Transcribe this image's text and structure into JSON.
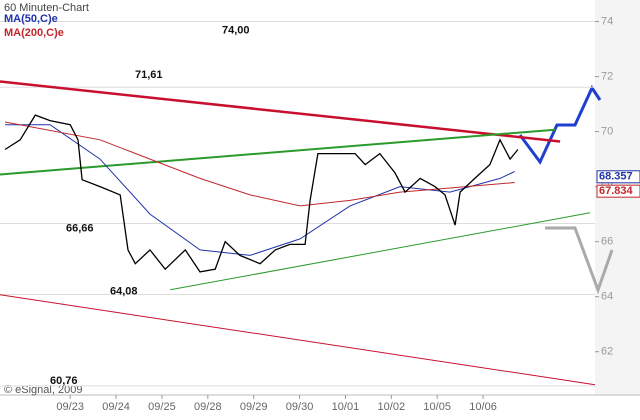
{
  "chart_data": {
    "type": "line",
    "title": "60 Minuten-Chart",
    "credit": "© eSignal, 2009",
    "xlim": [
      -1.53,
      11.44
    ],
    "ylim": [
      60.5,
      74.6
    ],
    "xticks": [
      {
        "value": 0,
        "label": "09/23"
      },
      {
        "value": 1,
        "label": "09/24"
      },
      {
        "value": 2,
        "label": "09/25"
      },
      {
        "value": 3,
        "label": "09/28"
      },
      {
        "value": 4,
        "label": "09/29"
      },
      {
        "value": 5,
        "label": "09/30"
      },
      {
        "value": 6,
        "label": "10/01"
      },
      {
        "value": 7,
        "label": "10/02"
      },
      {
        "value": 8,
        "label": "10/05"
      },
      {
        "value": 9,
        "label": "10/06"
      }
    ],
    "yticks": [
      62,
      64,
      66,
      68,
      70,
      72,
      74
    ],
    "levels": [
      {
        "value": 74,
        "label": "74,00"
      },
      {
        "value": 71.61,
        "label": "71,61"
      },
      {
        "value": 66.66,
        "label": "66,66"
      },
      {
        "value": 64.08,
        "label": "64,08"
      },
      {
        "value": 60.76,
        "label": "60,76"
      }
    ],
    "series": [
      {
        "color": "#000000",
        "x": [
          -1.42,
          -1.09,
          -0.76,
          -0.44,
          0,
          0.17,
          0.26,
          0.65,
          1.09,
          1.26,
          1.42,
          1.74,
          2.07,
          2.51,
          2.83,
          3.16,
          3.38,
          3.7,
          4.14,
          4.47,
          4.79,
          5.12,
          5.23,
          5.4,
          5.77,
          6.21,
          6.43,
          6.75,
          7.08,
          7.3,
          7.63,
          7.95,
          8.17,
          8.39,
          8.5,
          8.82,
          9.15,
          9.37,
          9.59,
          9.76
        ],
        "values": [
          69.35,
          69.7,
          70.6,
          70.4,
          70.25,
          69.7,
          68.25,
          68.0,
          67.7,
          65.7,
          65.2,
          65.7,
          65.0,
          65.7,
          64.9,
          65.0,
          66.0,
          65.5,
          65.2,
          65.7,
          65.9,
          65.9,
          67.5,
          69.2,
          69.2,
          69.2,
          68.8,
          69.2,
          68.5,
          67.8,
          68.3,
          68.0,
          67.7,
          66.6,
          67.8,
          68.3,
          68.8,
          69.7,
          69.0,
          69.35
        ]
      },
      {
        "name": "MA(50,C)e",
        "color": "#2233aa",
        "last_value": 68.357,
        "x": [
          -1.42,
          -0.44,
          0.65,
          1.74,
          2.83,
          3.92,
          5.01,
          6.1,
          7.19,
          8.28,
          9.37,
          9.69
        ],
        "values": [
          70.25,
          70.25,
          69.0,
          67.0,
          65.7,
          65.5,
          66.1,
          67.3,
          68.0,
          67.8,
          68.3,
          68.55
        ]
      },
      {
        "name": "MA(200,C)e",
        "color": "#c0282d",
        "last_value": 67.834,
        "x": [
          -1.42,
          0.65,
          1.74,
          2.83,
          3.92,
          5.01,
          6.1,
          7.19,
          8.28,
          9.69
        ],
        "values": [
          70.35,
          69.7,
          69.0,
          68.3,
          67.7,
          67.3,
          67.5,
          67.8,
          67.95,
          68.15
        ]
      }
    ],
    "trendlines": [
      {
        "color": "#c8102e",
        "width": 2.5,
        "x": [
          -1.53,
          10.68
        ],
        "values": [
          71.82,
          69.64
        ]
      },
      {
        "color": "#c8102e",
        "width": 1,
        "x": [
          -1.53,
          11.44
        ],
        "values": [
          64.07,
          60.8
        ]
      },
      {
        "color": "#2a9a2a",
        "width": 2,
        "x": [
          -1.53,
          10.57
        ],
        "values": [
          68.44,
          70.07
        ]
      },
      {
        "color": "#2a9a2a",
        "width": 1,
        "x": [
          2.18,
          11.33
        ],
        "values": [
          64.25,
          67.05
        ]
      }
    ]
  }
}
